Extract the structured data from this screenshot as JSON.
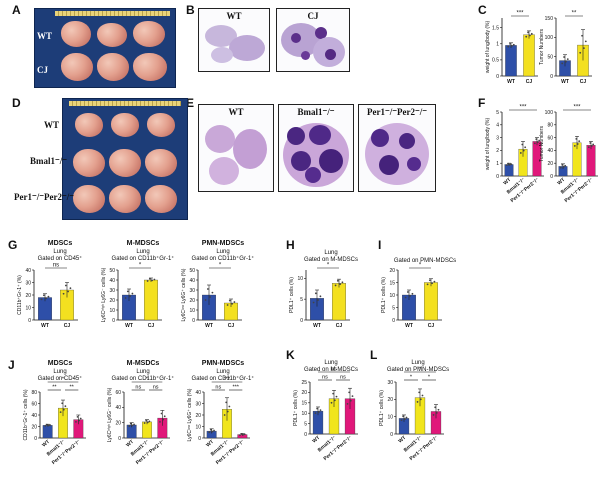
{
  "panels": {
    "A": {
      "letter": "A",
      "rows": [
        "WT",
        "CJ"
      ]
    },
    "B": {
      "letter": "B",
      "titles": [
        "WT",
        "CJ"
      ]
    },
    "C": {
      "letter": "C"
    },
    "D": {
      "letter": "D",
      "rows": [
        "WT",
        "Bmal1⁻/⁻",
        "Per1⁻/⁻Per2⁻/⁻"
      ]
    },
    "E": {
      "letter": "E",
      "titles": [
        "WT",
        "Bmal1⁻/⁻",
        "Per1⁻/⁻Per2⁻/⁻"
      ]
    },
    "F": {
      "letter": "F"
    },
    "G": {
      "letter": "G",
      "titles": [
        "MDSCs",
        "M-MDSCs",
        "PMN-MDSCs"
      ],
      "subtitles": [
        "Lung\nGated on CD45⁺",
        "Lung\nGated on CD11b⁺Gr-1⁺",
        "Lung\nGated on CD11b⁺Gr-1⁺"
      ]
    },
    "H": {
      "letter": "H",
      "subtitle": "Lung\nGated on M-MDSCs"
    },
    "I": {
      "letter": "I",
      "subtitle": "Gated on PMN-MDSCs"
    },
    "J": {
      "letter": "J",
      "titles": [
        "MDSCs",
        "M-MSDCs",
        "PMN-MDSCs"
      ],
      "subtitles": [
        "Lung\nGated on CD45⁺",
        "Lung\nGated on CD11b⁺Gr-1⁺",
        "Lung\nGated on CD11b⁺Gr-1⁺"
      ]
    },
    "K": {
      "letter": "K",
      "subtitle": "Lung\nGated on M-MDSCs"
    },
    "L": {
      "letter": "L",
      "subtitle": "Lung\nGated on PMN-MDSCs"
    }
  },
  "colors": {
    "wt": "#2e4fa8",
    "cj": "#f3e020",
    "bmal": "#f1e51c",
    "per": "#e0187a"
  },
  "chart_data": [
    {
      "id": "C1",
      "type": "bar",
      "categories": [
        "WT",
        "CJ"
      ],
      "values": [
        0.95,
        1.28
      ],
      "errors": [
        0.08,
        0.12
      ],
      "ylabel": "weight of lung/body (%)",
      "ylim": [
        0,
        1.8
      ],
      "ticks": [
        0,
        0.5,
        1.0,
        1.5
      ],
      "sig": [
        "***"
      ]
    },
    {
      "id": "C2",
      "type": "bar",
      "categories": [
        "WT",
        "CJ"
      ],
      "values": [
        40,
        80
      ],
      "errors": [
        15,
        40
      ],
      "ylabel": "Tumor Numbers",
      "ylim": [
        0,
        150
      ],
      "ticks": [
        0,
        50,
        100,
        150
      ],
      "sig": [
        "**"
      ]
    },
    {
      "id": "F1",
      "type": "bar",
      "categories": [
        "WT",
        "Bmal1⁻/⁻",
        "Per1⁻/⁻Per2⁻/⁻"
      ],
      "values": [
        0.9,
        2.1,
        2.7
      ],
      "errors": [
        0.1,
        0.6,
        0.3
      ],
      "ylabel": "weight of lung/body (%)",
      "ylim": [
        0,
        5
      ],
      "ticks": [
        0,
        1,
        2,
        3,
        4,
        5
      ],
      "sig": [
        "***"
      ]
    },
    {
      "id": "F2",
      "type": "bar",
      "categories": [
        "WT",
        "Bmal1⁻/⁻",
        "Per1⁻/⁻Per2⁻/⁻"
      ],
      "values": [
        15,
        52,
        48
      ],
      "errors": [
        4,
        10,
        6
      ],
      "ylabel": "Tumor Numbers",
      "ylim": [
        0,
        100
      ],
      "ticks": [
        0,
        20,
        40,
        60,
        80,
        100
      ],
      "sig": [
        "***"
      ]
    },
    {
      "id": "G1",
      "type": "bar",
      "categories": [
        "WT",
        "CJ"
      ],
      "values": [
        18,
        24
      ],
      "errors": [
        3,
        6
      ],
      "ylabel": "CD11b⁺Gr-1⁺ (%)",
      "ylim": [
        0,
        40
      ],
      "ticks": [
        0,
        10,
        20,
        30,
        40
      ],
      "sig": [
        "ns"
      ]
    },
    {
      "id": "G2",
      "type": "bar",
      "categories": [
        "WT",
        "CJ"
      ],
      "values": [
        25,
        40
      ],
      "errors": [
        6,
        2
      ],
      "ylabel": "Ly6Cʰⁱᵍʰ Ly6G⁻ cells (%)",
      "ylim": [
        0,
        50
      ],
      "ticks": [
        0,
        10,
        20,
        30,
        40,
        50
      ],
      "sig": [
        "*"
      ]
    },
    {
      "id": "G3",
      "type": "bar",
      "categories": [
        "WT",
        "CJ"
      ],
      "values": [
        25,
        17
      ],
      "errors": [
        10,
        4
      ],
      "ylabel": "Ly6Cˡᵒʷ Ly6G⁺ cells (%)",
      "ylim": [
        0,
        50
      ],
      "ticks": [
        0,
        10,
        20,
        30,
        40,
        50
      ],
      "sig": [
        "*"
      ]
    },
    {
      "id": "H",
      "type": "bar",
      "categories": [
        "WT",
        "CJ"
      ],
      "values": [
        5.2,
        8.8
      ],
      "errors": [
        2.0,
        1.0
      ],
      "ylabel": "PDL1⁺ cells (%)",
      "ylim": [
        0,
        12
      ],
      "ticks": [
        0,
        5,
        10
      ],
      "sig": [
        "*"
      ]
    },
    {
      "id": "I",
      "type": "bar",
      "categories": [
        "WT",
        "CJ"
      ],
      "values": [
        10,
        15
      ],
      "errors": [
        2,
        1.5
      ],
      "ylabel": "PDL1⁺ cells (%)",
      "ylim": [
        0,
        20
      ],
      "ticks": [
        0,
        5,
        10,
        15,
        20
      ],
      "sig": [
        "*"
      ]
    },
    {
      "id": "J1",
      "type": "bar",
      "categories": [
        "WT",
        "Bmal1⁻/⁻",
        "Per1⁻/⁻Per2⁻/⁻"
      ],
      "values": [
        22,
        52,
        32
      ],
      "errors": [
        2,
        14,
        8
      ],
      "ylabel": "CD11b⁺Gr-1⁺ cells (%)",
      "ylim": [
        0,
        80
      ],
      "ticks": [
        0,
        20,
        40,
        60,
        80
      ],
      "sig": [
        "**",
        "**",
        "*"
      ]
    },
    {
      "id": "J2",
      "type": "bar",
      "categories": [
        "WT",
        "Bmal1⁻/⁻",
        "Per1⁻/⁻Per2⁻/⁻"
      ],
      "values": [
        17,
        21,
        26
      ],
      "errors": [
        3,
        3,
        10
      ],
      "ylabel": "Ly6Cʰⁱᵍʰ Ly6G⁻ cells (%)",
      "ylim": [
        0,
        60
      ],
      "ticks": [
        0,
        20,
        40,
        60
      ],
      "sig": [
        "ns",
        "ns",
        "*"
      ]
    },
    {
      "id": "J3",
      "type": "bar",
      "categories": [
        "WT",
        "Bmal1⁻/⁻",
        "Per1⁻/⁻Per2⁻/⁻"
      ],
      "values": [
        6,
        25,
        3
      ],
      "errors": [
        2,
        10,
        1
      ],
      "ylabel": "Ly6Cˡᵒʷ Ly6G⁺ cells (%)",
      "ylim": [
        0,
        40
      ],
      "ticks": [
        0,
        10,
        20,
        30,
        40
      ],
      "sig": [
        "ns",
        "***",
        "***"
      ]
    },
    {
      "id": "K",
      "type": "bar",
      "categories": [
        "WT",
        "Bmal1⁻/⁻",
        "Per1⁻/⁻Per2⁻/⁻"
      ],
      "values": [
        11,
        17,
        17
      ],
      "errors": [
        2,
        4,
        5
      ],
      "ylabel": "PDL1⁺ cells (%)",
      "ylim": [
        0,
        25
      ],
      "ticks": [
        0,
        5,
        10,
        15,
        20,
        25
      ],
      "sig": [
        "ns",
        "ns",
        "ns"
      ]
    },
    {
      "id": "L",
      "type": "bar",
      "categories": [
        "WT",
        "Bmal1⁻/⁻",
        "Per1⁻/⁻Per2⁻/⁻"
      ],
      "values": [
        9,
        21,
        13
      ],
      "errors": [
        2,
        5,
        4
      ],
      "ylabel": "PDL1⁺ cells (%)",
      "ylim": [
        0,
        30
      ],
      "ticks": [
        0,
        10,
        20,
        30
      ],
      "sig": [
        "*",
        "*",
        "*"
      ]
    }
  ]
}
